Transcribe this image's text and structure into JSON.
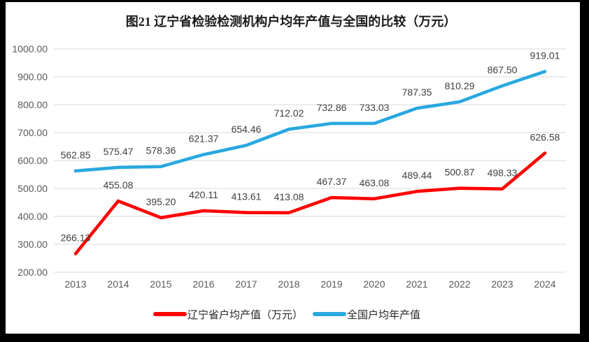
{
  "frame": {
    "border_color": "#000000",
    "background_color": "#ffffff"
  },
  "chart_data": {
    "type": "line",
    "title": "图21 辽宁省检验检测机构户均年产值与全国的比较（万元）",
    "xlabel": "",
    "ylabel": "",
    "categories": [
      "2013",
      "2014",
      "2015",
      "2016",
      "2017",
      "2018",
      "2019",
      "2020",
      "2021",
      "2022",
      "2023",
      "2024"
    ],
    "series": [
      {
        "name": "辽宁省户均产值（万元）",
        "color": "#ff0000",
        "values": [
          266.13,
          455.08,
          395.2,
          420.11,
          413.61,
          413.08,
          467.37,
          463.08,
          489.44,
          500.87,
          498.33,
          626.58
        ]
      },
      {
        "name": "全国户均年产值",
        "color": "#29a8e0",
        "values": [
          562.85,
          575.47,
          578.36,
          621.37,
          654.46,
          712.02,
          732.86,
          733.03,
          787.35,
          810.29,
          867.5,
          919.01
        ]
      }
    ],
    "ylim": [
      200,
      1000
    ],
    "ytick_step": 100,
    "ytick_format_decimals": 2,
    "data_label_format_decimals": 2,
    "grid": "horizontal",
    "gridline_color": "#d9d9d9",
    "axis_label_color": "#595959",
    "data_label_color": "#3f3f3f",
    "legend_position": "bottom"
  }
}
